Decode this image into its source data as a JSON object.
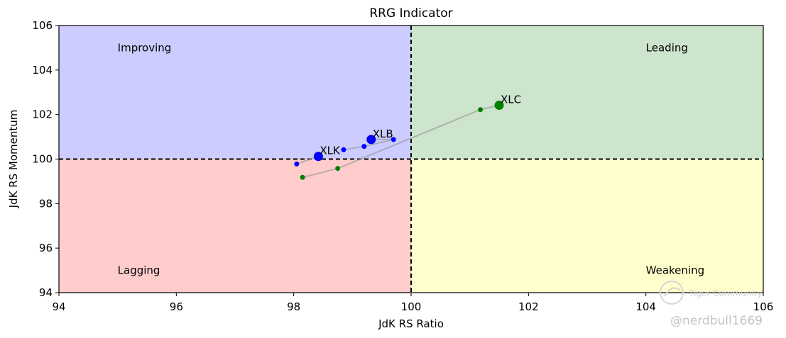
{
  "chart_data": {
    "type": "scatter",
    "title": "RRG Indicator",
    "xlabel": "JdK RS Ratio",
    "ylabel": "JdK RS Momentum",
    "xlim": [
      94,
      106
    ],
    "ylim": [
      94,
      106
    ],
    "xticks": [
      "94",
      "96",
      "98",
      "100",
      "102",
      "104",
      "106"
    ],
    "yticks": [
      "94",
      "96",
      "98",
      "100",
      "102",
      "104",
      "106"
    ],
    "center": [
      100,
      100
    ],
    "quadrants": [
      {
        "name": "Improving",
        "color": "#ccccff",
        "label_at": [
          95,
          105
        ]
      },
      {
        "name": "Leading",
        "color": "#cce5cc",
        "label_at": [
          104,
          105
        ]
      },
      {
        "name": "Lagging",
        "color": "#ffcccc",
        "label_at": [
          95,
          95
        ]
      },
      {
        "name": "Weakening",
        "color": "#ffffcc",
        "label_at": [
          104,
          95
        ]
      }
    ],
    "series": [
      {
        "name": "XLK",
        "color": "#0000ff",
        "trail": [
          [
            98.05,
            99.78
          ],
          [
            98.42,
            100.12
          ]
        ],
        "current": [
          98.42,
          100.12
        ]
      },
      {
        "name": "XLB",
        "color": "#0000ff",
        "trail": [
          [
            98.85,
            100.42
          ],
          [
            99.2,
            100.57
          ],
          [
            99.7,
            100.88
          ],
          [
            99.32,
            100.88
          ]
        ],
        "current": [
          99.32,
          100.88
        ]
      },
      {
        "name": "XLC",
        "color": "#008000",
        "trail": [
          [
            98.15,
            99.18
          ],
          [
            98.75,
            99.58
          ],
          [
            101.18,
            102.22
          ],
          [
            101.5,
            102.42
          ]
        ],
        "current": [
          101.5,
          102.42
        ]
      }
    ]
  },
  "watermark": {
    "brand": "Tiger Community",
    "handle": "@nerdbull1669"
  }
}
